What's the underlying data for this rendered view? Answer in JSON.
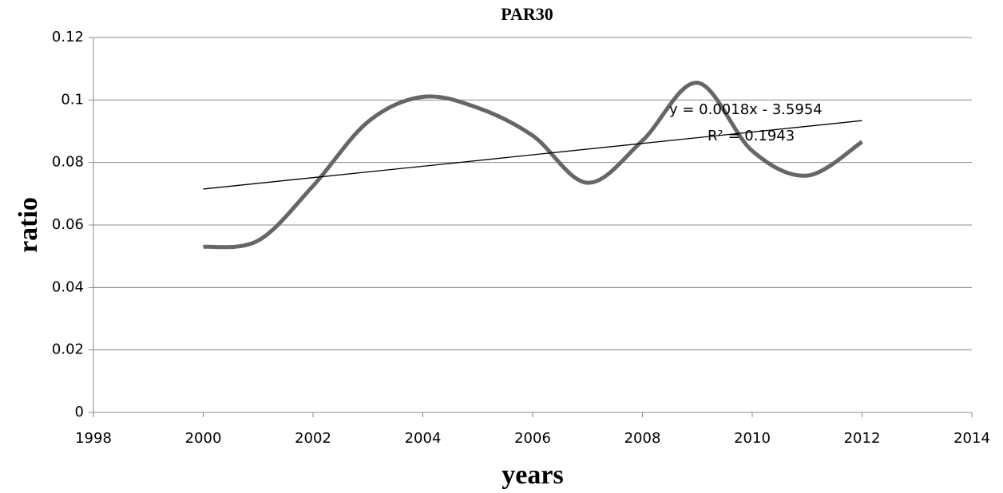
{
  "chart_data": {
    "type": "scatter-smooth",
    "title": "PAR30",
    "x_label": "years",
    "y_label": "ratio",
    "series": [
      {
        "color": "#666666",
        "x": [
          2000,
          2001,
          2002,
          2003,
          2004,
          2005,
          2006,
          2007,
          2008,
          2009,
          2010,
          2011,
          2012
        ],
        "values": [
          0.053,
          0.055,
          0.0725,
          0.093,
          0.101,
          0.0975,
          0.0886,
          0.0735,
          0.087,
          0.1055,
          0.0837,
          0.0758,
          0.0866
        ]
      }
    ],
    "trendline": {
      "color": "#000000",
      "x": [
        2000,
        2012
      ],
      "values": [
        0.0715,
        0.0934
      ],
      "equation": "y = 0.0018x - 3.5954",
      "r_squared": "R² = 0.1943"
    },
    "xlim": [
      1998,
      2014
    ],
    "xticks": [
      1998,
      2000,
      2002,
      2004,
      2006,
      2008,
      2010,
      2012,
      2014
    ],
    "ylim": [
      0,
      0.12
    ],
    "yticks": [
      0,
      0.02,
      0.04,
      0.06,
      0.08,
      0.1,
      0.12
    ],
    "grid": true
  }
}
